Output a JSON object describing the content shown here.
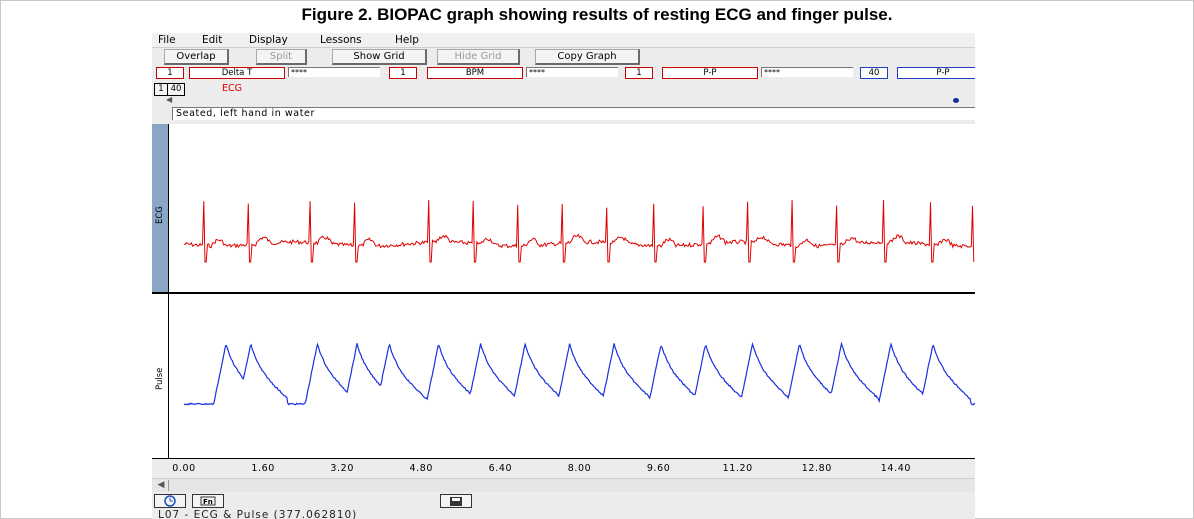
{
  "figure_title": "Figure 2. BIOPAC graph showing results of resting ECG and finger pulse.",
  "menu": [
    "File",
    "Edit",
    "Display",
    "Lessons",
    "Help"
  ],
  "toolbar": {
    "overlap": "Overlap",
    "split": "Split",
    "show_grid": "Show Grid",
    "hide_grid": "Hide Grid",
    "copy_graph": "Copy Graph"
  },
  "measurements": [
    {
      "channel": "1",
      "type": "Delta T",
      "value": "****"
    },
    {
      "channel": "1",
      "type": "BPM",
      "value": "****"
    },
    {
      "channel": "1",
      "type": "P-P",
      "value": "****"
    },
    {
      "channel": "40",
      "type": "P-P",
      "value": ""
    }
  ],
  "channels": {
    "buttons": [
      "1",
      "40"
    ],
    "selected_label": "ECG"
  },
  "annotation": "Seated, left hand in water",
  "waveform_labels": {
    "ecg": "ECG",
    "pulse": "Pulse"
  },
  "colors": {
    "ecg": "#e00000",
    "pulse": "#1a2fe0",
    "ecg_label_bg": "#8aa6c6",
    "measure_border": "#cc0000"
  },
  "time_axis": {
    "ticks": [
      "0.00",
      "1.60",
      "3.20",
      "4.80",
      "6.40",
      "8.00",
      "9.60",
      "11.20",
      "12.80",
      "14.40"
    ],
    "range": [
      0,
      16
    ]
  },
  "beats": {
    "ecg_r_peak_times": [
      0.4,
      1.3,
      2.55,
      3.45,
      4.95,
      5.85,
      6.75,
      7.65,
      8.55,
      9.5,
      10.5,
      11.4,
      12.3,
      13.2,
      14.15,
      15.1,
      15.95
    ],
    "pulse_peak_times": [
      0.85,
      1.35,
      2.7,
      3.5,
      4.15,
      5.15,
      6.0,
      6.9,
      7.8,
      8.7,
      9.65,
      10.55,
      11.5,
      12.45,
      13.3,
      14.3,
      15.15
    ]
  },
  "bottom_icons": [
    "clock-icon",
    "fn-icon",
    "save-icon"
  ],
  "status": "L07 - ECG & Pulse (377.062810)"
}
